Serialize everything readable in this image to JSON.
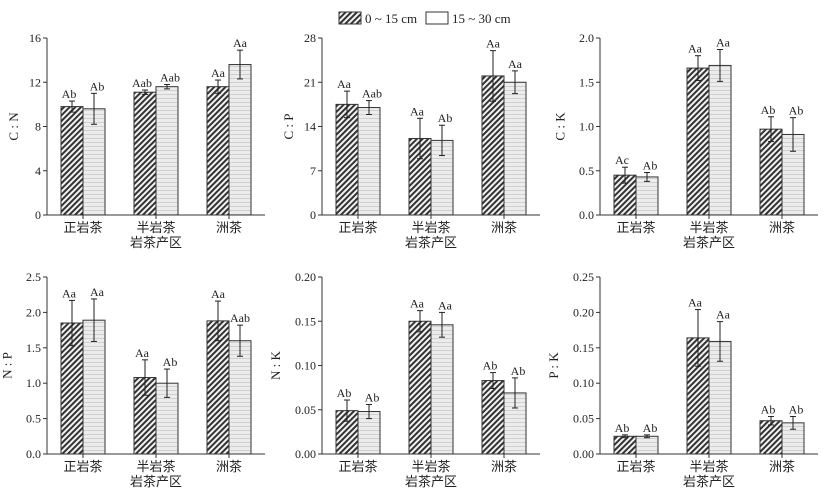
{
  "legend": {
    "series1": "0 ~ 15 cm",
    "series2": "15 ~ 30 cm"
  },
  "chart_data": [
    {
      "type": "bar",
      "ylabel": "C : N",
      "xlabel": "岩茶产区",
      "categories": [
        "正岩茶",
        "半岩茶",
        "洲茶"
      ],
      "ylim": [
        0,
        16
      ],
      "yticks": [
        0,
        4,
        8,
        12,
        16
      ],
      "tick_labels": [
        "0",
        "4",
        "8",
        "12",
        "16"
      ],
      "series": [
        {
          "name": "0 ~ 15 cm",
          "values": [
            9.8,
            11.1,
            11.6
          ],
          "errors": [
            0.5,
            0.2,
            0.6
          ],
          "labels": [
            "Ab",
            "Aab",
            "Aa"
          ]
        },
        {
          "name": "15 ~ 30 cm",
          "values": [
            9.6,
            11.6,
            13.6
          ],
          "errors": [
            1.4,
            0.2,
            1.3
          ],
          "labels": [
            "Ab",
            "Aab",
            "Aa"
          ]
        }
      ]
    },
    {
      "type": "bar",
      "ylabel": "C : P",
      "xlabel": "岩茶产区",
      "categories": [
        "正岩茶",
        "半岩茶",
        "洲茶"
      ],
      "ylim": [
        0,
        28
      ],
      "yticks": [
        0,
        7,
        14,
        21,
        28
      ],
      "tick_labels": [
        "0",
        "7",
        "14",
        "21",
        "28"
      ],
      "series": [
        {
          "name": "0 ~ 15 cm",
          "values": [
            17.5,
            12.1,
            22.0
          ],
          "errors": [
            2.1,
            3.2,
            4.0
          ],
          "labels": [
            "Aa",
            "Aa",
            "Aa"
          ]
        },
        {
          "name": "15 ~ 30 cm",
          "values": [
            17.0,
            11.8,
            21.0
          ],
          "errors": [
            1.1,
            2.4,
            1.8
          ],
          "labels": [
            "Aab",
            "Ab",
            "Aa"
          ]
        }
      ]
    },
    {
      "type": "bar",
      "ylabel": "C : K",
      "xlabel": "岩茶产区",
      "categories": [
        "正岩茶",
        "半岩茶",
        "洲茶"
      ],
      "ylim": [
        0,
        2
      ],
      "yticks": [
        0,
        0.5,
        1,
        1.5,
        2
      ],
      "tick_labels": [
        "0.0",
        "0.5",
        "1.0",
        "1.5",
        "2.0"
      ],
      "series": [
        {
          "name": "0 ~ 15 cm",
          "values": [
            0.45,
            1.66,
            0.97
          ],
          "errors": [
            0.09,
            0.14,
            0.14
          ],
          "labels": [
            "Ac",
            "Aa",
            "Ab"
          ]
        },
        {
          "name": "15 ~ 30 cm",
          "values": [
            0.43,
            1.69,
            0.91
          ],
          "errors": [
            0.05,
            0.18,
            0.19
          ],
          "labels": [
            "Ab",
            "Aa",
            "Ab"
          ]
        }
      ]
    },
    {
      "type": "bar",
      "ylabel": "N : P",
      "xlabel": "岩茶产区",
      "categories": [
        "正岩茶",
        "半岩茶",
        "洲茶"
      ],
      "ylim": [
        0,
        2.5
      ],
      "yticks": [
        0,
        0.5,
        1,
        1.5,
        2,
        2.5
      ],
      "tick_labels": [
        "0.0",
        "0.5",
        "1.0",
        "1.5",
        "2.0",
        "2.5"
      ],
      "series": [
        {
          "name": "0 ~ 15 cm",
          "values": [
            1.85,
            1.08,
            1.88
          ],
          "errors": [
            0.32,
            0.25,
            0.28
          ],
          "labels": [
            "Aa",
            "Aa",
            "Aa"
          ]
        },
        {
          "name": "15 ~ 30 cm",
          "values": [
            1.89,
            1.0,
            1.6
          ],
          "errors": [
            0.3,
            0.2,
            0.22
          ],
          "labels": [
            "Aa",
            "Ab",
            "Aab"
          ]
        }
      ]
    },
    {
      "type": "bar",
      "ylabel": "N : K",
      "xlabel": "岩茶产区",
      "categories": [
        "正岩茶",
        "半岩茶",
        "洲茶"
      ],
      "ylim": [
        0,
        0.2
      ],
      "yticks": [
        0,
        0.05,
        0.1,
        0.15,
        0.2
      ],
      "tick_labels": [
        "0.00",
        "0.05",
        "0.10",
        "0.15",
        "0.20"
      ],
      "series": [
        {
          "name": "0 ~ 15 cm",
          "values": [
            0.049,
            0.15,
            0.083
          ],
          "errors": [
            0.012,
            0.012,
            0.009
          ],
          "labels": [
            "Ab",
            "Aa",
            "Ab"
          ]
        },
        {
          "name": "15 ~ 30 cm",
          "values": [
            0.048,
            0.146,
            0.069
          ],
          "errors": [
            0.008,
            0.014,
            0.017
          ],
          "labels": [
            "Ab",
            "Aa",
            "Ab"
          ]
        }
      ]
    },
    {
      "type": "bar",
      "ylabel": "P : K",
      "xlabel": "岩茶产区",
      "categories": [
        "正岩茶",
        "半岩茶",
        "洲茶"
      ],
      "ylim": [
        0,
        0.25
      ],
      "yticks": [
        0,
        0.05,
        0.1,
        0.15,
        0.2,
        0.25
      ],
      "tick_labels": [
        "0.00",
        "0.05",
        "0.10",
        "0.15",
        "0.20",
        "0.25"
      ],
      "series": [
        {
          "name": "0 ~ 15 cm",
          "values": [
            0.025,
            0.164,
            0.047
          ],
          "errors": [
            0.002,
            0.04,
            0.006
          ],
          "labels": [
            "Ab",
            "Aa",
            "Ab"
          ]
        },
        {
          "name": "15 ~ 30 cm",
          "values": [
            0.025,
            0.159,
            0.044
          ],
          "errors": [
            0.002,
            0.028,
            0.009
          ],
          "labels": [
            "Ab",
            "Aa",
            "Ab"
          ]
        }
      ]
    }
  ]
}
